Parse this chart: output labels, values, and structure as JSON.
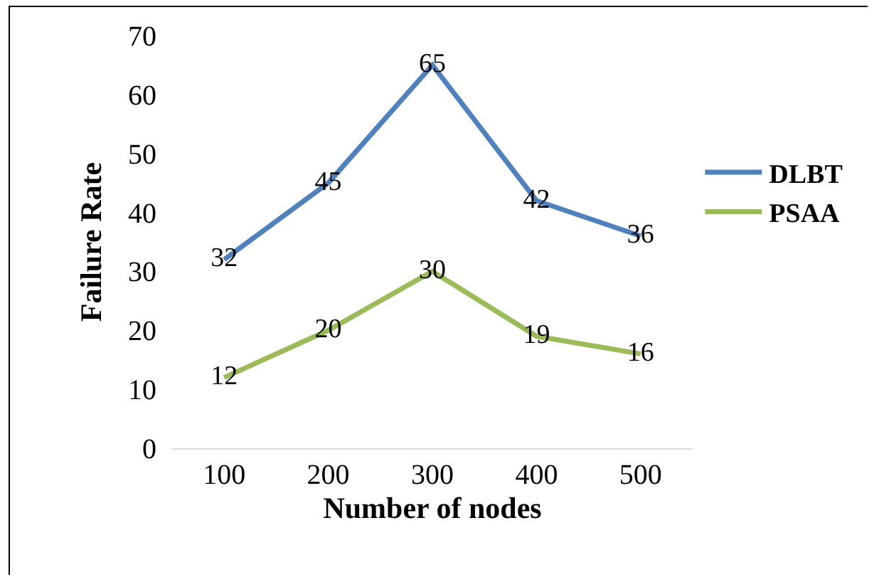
{
  "chart_data": {
    "type": "line",
    "xlabel": "Number of nodes",
    "ylabel": "Failure Rate",
    "categories": [
      "100",
      "200",
      "300",
      "400",
      "500"
    ],
    "series": [
      {
        "name": "DLBT",
        "color": "#4f81bd",
        "values": [
          32,
          45,
          65,
          42,
          36
        ]
      },
      {
        "name": "PSAA",
        "color": "#9bbb59",
        "values": [
          12,
          20,
          30,
          19,
          16
        ]
      }
    ],
    "ylim": [
      0,
      70
    ],
    "yticks": [
      0,
      10,
      20,
      30,
      40,
      50,
      60,
      70
    ],
    "grid": false,
    "legend": "right",
    "marker": "none",
    "line_style": "solid",
    "data_labels": true
  }
}
